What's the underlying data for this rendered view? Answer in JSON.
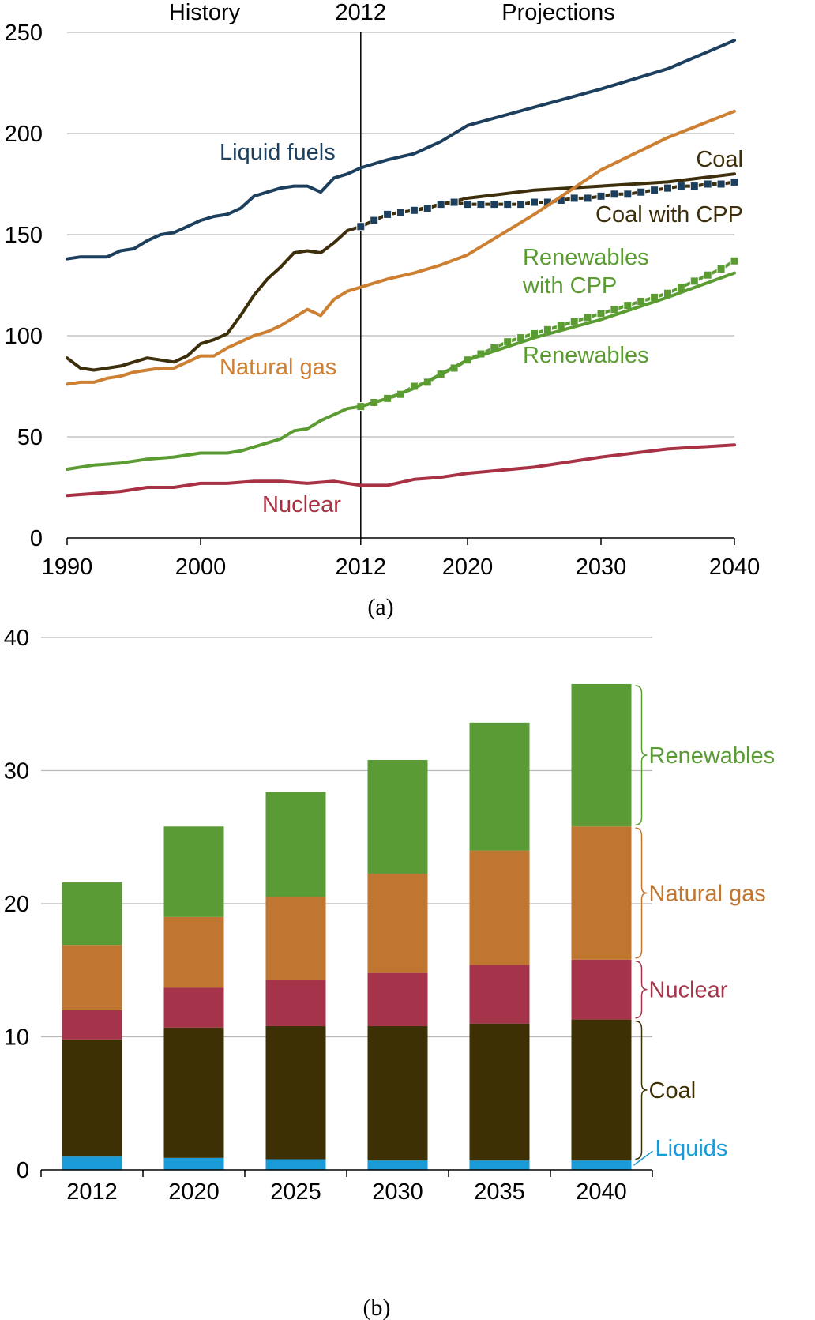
{
  "chart_data": [
    {
      "type": "line",
      "caption": "(a)",
      "headers": {
        "history": "History",
        "divider": "2012",
        "projections": "Projections"
      },
      "divider_year": 2012,
      "x_ticks": [
        "1990",
        "2000",
        "2012",
        "2020",
        "2030",
        "2040"
      ],
      "y_ticks": [
        "0",
        "50",
        "100",
        "150",
        "200",
        "250"
      ],
      "xlim": [
        1990,
        2040
      ],
      "ylim": [
        0,
        250
      ],
      "grid": true,
      "series": [
        {
          "name": "Liquid fuels",
          "label_lines": [
            "Liquid fuels"
          ],
          "color": "#1c3f5e",
          "markers": false,
          "x": [
            1990,
            1991,
            1992,
            1993,
            1994,
            1995,
            1996,
            1997,
            1998,
            1999,
            2000,
            2001,
            2002,
            2003,
            2004,
            2005,
            2006,
            2007,
            2008,
            2009,
            2010,
            2011,
            2012,
            2014,
            2016,
            2018,
            2020,
            2025,
            2030,
            2035,
            2040
          ],
          "y": [
            138,
            139,
            139,
            139,
            142,
            143,
            147,
            150,
            151,
            154,
            157,
            159,
            160,
            163,
            169,
            171,
            173,
            174,
            174,
            171,
            178,
            180,
            183,
            187,
            190,
            196,
            204,
            213,
            222,
            232,
            246
          ]
        },
        {
          "name": "Coal",
          "label_lines": [
            "Coal"
          ],
          "color": "#3d2f0b",
          "markers": false,
          "x": [
            1990,
            1991,
            1992,
            1993,
            1994,
            1995,
            1996,
            1997,
            1998,
            1999,
            2000,
            2001,
            2002,
            2003,
            2004,
            2005,
            2006,
            2007,
            2008,
            2009,
            2010,
            2011,
            2012,
            2014,
            2016,
            2018,
            2020,
            2025,
            2030,
            2035,
            2040
          ],
          "y": [
            89,
            84,
            83,
            84,
            85,
            87,
            89,
            88,
            87,
            90,
            96,
            98,
            101,
            110,
            120,
            128,
            134,
            141,
            142,
            141,
            146,
            152,
            154,
            160,
            162,
            165,
            168,
            172,
            174,
            176,
            180
          ]
        },
        {
          "name": "Coal with CPP",
          "label_lines": [
            "Coal with CPP"
          ],
          "color": "#3d2f0b",
          "markers": true,
          "marker_color": "#1c3f5e",
          "x": [
            2012,
            2013,
            2014,
            2015,
            2016,
            2017,
            2018,
            2019,
            2020,
            2021,
            2022,
            2023,
            2024,
            2025,
            2026,
            2027,
            2028,
            2029,
            2030,
            2031,
            2032,
            2033,
            2034,
            2035,
            2036,
            2037,
            2038,
            2039,
            2040
          ],
          "y": [
            154,
            157,
            160,
            161,
            162,
            163,
            165,
            166,
            165,
            165,
            165,
            165,
            165,
            166,
            166,
            167,
            168,
            168,
            169,
            170,
            170,
            171,
            172,
            173,
            174,
            174,
            175,
            175,
            176
          ]
        },
        {
          "name": "Natural gas",
          "label_lines": [
            "Natural gas"
          ],
          "color": "#cd7f32",
          "markers": false,
          "x": [
            1990,
            1991,
            1992,
            1993,
            1994,
            1995,
            1996,
            1997,
            1998,
            1999,
            2000,
            2001,
            2002,
            2003,
            2004,
            2005,
            2006,
            2007,
            2008,
            2009,
            2010,
            2011,
            2012,
            2014,
            2016,
            2018,
            2020,
            2025,
            2030,
            2035,
            2040
          ],
          "y": [
            76,
            77,
            77,
            79,
            80,
            82,
            83,
            84,
            84,
            87,
            90,
            90,
            94,
            97,
            100,
            102,
            105,
            109,
            113,
            110,
            118,
            122,
            124,
            128,
            131,
            135,
            140,
            160,
            182,
            198,
            211
          ]
        },
        {
          "name": "Renewables with CPP",
          "label_lines": [
            "Renewables",
            "with CPP"
          ],
          "color": "#5a9c32",
          "markers": true,
          "marker_color": "#5a9c32",
          "x": [
            2012,
            2013,
            2014,
            2015,
            2016,
            2017,
            2018,
            2019,
            2020,
            2021,
            2022,
            2023,
            2024,
            2025,
            2026,
            2027,
            2028,
            2029,
            2030,
            2031,
            2032,
            2033,
            2034,
            2035,
            2036,
            2037,
            2038,
            2039,
            2040
          ],
          "y": [
            65,
            67,
            69,
            71,
            75,
            77,
            81,
            84,
            88,
            91,
            94,
            97,
            99,
            101,
            103,
            105,
            107,
            109,
            111,
            113,
            115,
            117,
            119,
            121,
            124,
            127,
            130,
            133,
            137
          ]
        },
        {
          "name": "Renewables",
          "label_lines": [
            "Renewables"
          ],
          "color": "#5a9c32",
          "markers": false,
          "x": [
            1990,
            1992,
            1994,
            1996,
            1998,
            2000,
            2002,
            2003,
            2004,
            2005,
            2006,
            2007,
            2008,
            2009,
            2010,
            2011,
            2012,
            2014,
            2016,
            2018,
            2020,
            2025,
            2030,
            2035,
            2040
          ],
          "y": [
            34,
            36,
            37,
            39,
            40,
            42,
            42,
            43,
            45,
            47,
            49,
            53,
            54,
            58,
            61,
            64,
            65,
            69,
            74,
            81,
            88,
            99,
            108,
            119,
            131
          ]
        },
        {
          "name": "Nuclear",
          "label_lines": [
            "Nuclear"
          ],
          "color": "#a83244",
          "markers": false,
          "x": [
            1990,
            1992,
            1994,
            1996,
            1998,
            2000,
            2002,
            2004,
            2006,
            2008,
            2010,
            2011,
            2012,
            2013,
            2014,
            2016,
            2018,
            2020,
            2025,
            2030,
            2035,
            2040
          ],
          "y": [
            21,
            22,
            23,
            25,
            25,
            27,
            27,
            28,
            28,
            27,
            28,
            27,
            26,
            26,
            26,
            29,
            30,
            32,
            35,
            40,
            44,
            46
          ]
        }
      ]
    },
    {
      "type": "bar",
      "stacked": true,
      "caption": "(b)",
      "categories": [
        "2012",
        "2020",
        "2025",
        "2030",
        "2035",
        "2040"
      ],
      "y_ticks": [
        "0",
        "10",
        "20",
        "30",
        "40"
      ],
      "ylim": [
        0,
        40
      ],
      "grid": true,
      "series": [
        {
          "name": "Liquids",
          "color": "#1a9ad6",
          "values": [
            1.0,
            0.9,
            0.8,
            0.7,
            0.7,
            0.7
          ]
        },
        {
          "name": "Coal",
          "color": "#3d3005",
          "values": [
            8.8,
            9.8,
            10.0,
            10.1,
            10.3,
            10.6
          ]
        },
        {
          "name": "Nuclear",
          "color": "#a5344a",
          "values": [
            2.2,
            3.0,
            3.5,
            4.0,
            4.4,
            4.5
          ]
        },
        {
          "name": "Natural gas",
          "color": "#c07530",
          "values": [
            4.9,
            5.3,
            6.2,
            7.4,
            8.6,
            10.0
          ]
        },
        {
          "name": "Renewables",
          "color": "#5b9b35",
          "values": [
            4.7,
            6.8,
            7.9,
            8.6,
            9.6,
            10.7
          ]
        }
      ],
      "legend_labels": [
        {
          "name": "Renewables",
          "color": "#5b9b35"
        },
        {
          "name": "Natural gas",
          "color": "#c07530"
        },
        {
          "name": "Nuclear",
          "color": "#a5344a"
        },
        {
          "name": "Coal",
          "color": "#3d3005"
        },
        {
          "name": "Liquids",
          "color": "#1a9ad6"
        }
      ]
    }
  ]
}
